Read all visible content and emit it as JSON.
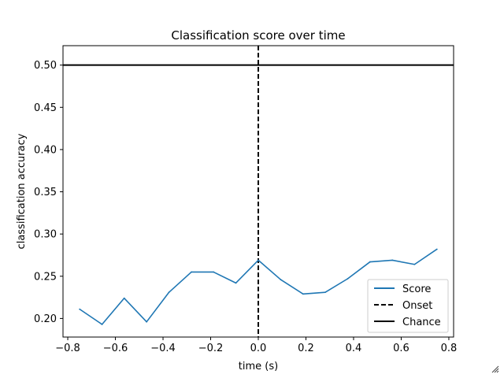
{
  "chart_data": {
    "type": "line",
    "title": "Classification score over time",
    "xlabel": "time (s)",
    "ylabel": "classification accuracy",
    "xlim": [
      -0.82,
      0.82
    ],
    "ylim": [
      0.178,
      0.523
    ],
    "xticks": [
      -0.8,
      -0.6,
      -0.4,
      -0.2,
      0.0,
      0.2,
      0.4,
      0.6,
      0.8
    ],
    "xtick_labels": [
      "−0.8",
      "−0.6",
      "−0.4",
      "−0.2",
      "0.0",
      "0.2",
      "0.4",
      "0.6",
      "0.8"
    ],
    "yticks": [
      0.2,
      0.25,
      0.3,
      0.35,
      0.4,
      0.45,
      0.5
    ],
    "ytick_labels": [
      "0.20",
      "0.25",
      "0.30",
      "0.35",
      "0.40",
      "0.45",
      "0.50"
    ],
    "grid": false,
    "legend_position": "bottom-right",
    "series": [
      {
        "name": "Score",
        "style": "solid",
        "color": "#1f77b4",
        "x": [
          -0.75,
          -0.656,
          -0.563,
          -0.469,
          -0.375,
          -0.281,
          -0.188,
          -0.094,
          0.0,
          0.094,
          0.188,
          0.281,
          0.375,
          0.469,
          0.563,
          0.656,
          0.75
        ],
        "y": [
          0.211,
          0.193,
          0.224,
          0.196,
          0.231,
          0.255,
          0.255,
          0.242,
          0.269,
          0.246,
          0.229,
          0.231,
          0.247,
          0.267,
          0.269,
          0.264,
          0.282
        ]
      }
    ],
    "reference_lines": [
      {
        "name": "Onset",
        "orientation": "vertical",
        "value": 0.0,
        "style": "dashed",
        "color": "#000000"
      },
      {
        "name": "Chance",
        "orientation": "horizontal",
        "value": 0.5,
        "style": "solid",
        "color": "#000000"
      }
    ],
    "legend": [
      "Score",
      "Onset",
      "Chance"
    ]
  }
}
